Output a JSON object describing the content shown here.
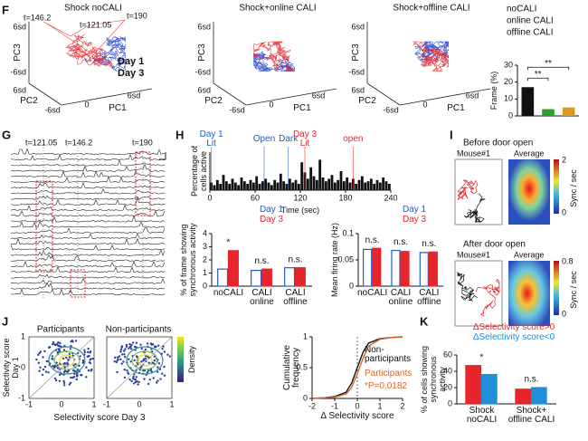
{
  "chart_data": [
    {
      "type": "bar",
      "ylabel": "Frame (%)",
      "categories": [
        "noCALI",
        "online CALI",
        "offline CALI"
      ],
      "values": [
        17,
        4,
        5
      ],
      "colors": [
        "#111111",
        "#2ca02c",
        "#d99a1e"
      ],
      "ylim": [
        0,
        30
      ],
      "yticks": [
        0,
        10,
        20,
        30
      ],
      "annotations": [
        "**",
        "**"
      ]
    },
    {
      "type": "bar",
      "ylabel": "Percentage of cells active",
      "xlabel": "Time (sec)",
      "color": "#111111",
      "x": [
        2,
        6,
        10,
        14,
        18,
        22,
        26,
        30,
        34,
        38,
        42,
        46,
        50,
        54,
        58,
        62,
        66,
        70,
        74,
        78,
        82,
        86,
        90,
        94,
        98,
        102,
        106,
        110,
        114,
        118,
        122,
        126,
        130,
        134,
        138,
        142,
        146,
        150,
        154,
        158,
        162,
        166,
        170,
        174,
        178,
        182,
        186,
        190,
        194,
        198,
        202,
        206,
        210,
        214,
        218,
        222,
        226,
        230,
        234,
        238
      ],
      "values": [
        6,
        4,
        8,
        5,
        12,
        7,
        5,
        9,
        6,
        4,
        10,
        7,
        5,
        8,
        6,
        11,
        5,
        7,
        9,
        6,
        4,
        8,
        6,
        13,
        7,
        5,
        9,
        6,
        8,
        5,
        22,
        14,
        9,
        18,
        11,
        8,
        24,
        10,
        7,
        9,
        12,
        6,
        8,
        15,
        7,
        10,
        6,
        9,
        5,
        8,
        11,
        6,
        7,
        9,
        5,
        8,
        6,
        10,
        7,
        5
      ],
      "xlim": [
        0,
        240
      ],
      "xticks": [
        0,
        60,
        120,
        180,
        240
      ],
      "ylim": [
        0,
        30
      ],
      "events": [
        {
          "label": "Day 1 Lit",
          "x": 2,
          "color": "#1f5fbf"
        },
        {
          "label": "Open",
          "x": 72,
          "color": "#1f5fbf"
        },
        {
          "label": "Dark",
          "x": 104,
          "color": "#1f5fbf"
        },
        {
          "label": "Day 3 Lit",
          "x": 126,
          "color": "#e8252a"
        },
        {
          "label": "open",
          "x": 190,
          "color": "#e8252a"
        }
      ]
    },
    {
      "type": "bar",
      "ylabel": "% of frame showing synchronous activity",
      "categories": [
        "noCALI",
        "CALI online",
        "CALI offline"
      ],
      "series": [
        {
          "name": "Day 1",
          "color": "#1f5fbf",
          "filled": false,
          "values": [
            1.3,
            1.2,
            1.4
          ]
        },
        {
          "name": "Day 3",
          "color": "#e8252a",
          "filled": true,
          "values": [
            2.7,
            1.3,
            1.4
          ]
        }
      ],
      "ylim": [
        0,
        4
      ],
      "yticks": [
        0,
        1,
        2,
        3,
        4
      ],
      "annotations": [
        "*",
        "n.s.",
        "n.s."
      ]
    },
    {
      "type": "bar",
      "ylabel": "Mean firing rate (Hz)",
      "categories": [
        "noCALI",
        "CALI online",
        "CALI offline"
      ],
      "series": [
        {
          "name": "Day 1",
          "color": "#1f5fbf",
          "filled": false,
          "values": [
            0.07,
            0.068,
            0.064
          ]
        },
        {
          "name": "Day 3",
          "color": "#e8252a",
          "filled": true,
          "values": [
            0.072,
            0.066,
            0.065
          ]
        }
      ],
      "ylim": [
        0,
        0.1
      ],
      "yticks": [
        0,
        0.05,
        0.1
      ],
      "annotations": [
        "n.s.",
        "n.s.",
        "n.s."
      ]
    },
    {
      "type": "line",
      "xlabel": "Δ Selectivity score",
      "ylabel": "Cumulative frequency",
      "annotation": "*P=0.0182",
      "x": [
        -2,
        -1.5,
        -1,
        -0.5,
        -0.25,
        0,
        0.25,
        0.5,
        1,
        1.5,
        2
      ],
      "series": [
        {
          "name": "Non-participants",
          "color": "#111111",
          "values": [
            0,
            0.01,
            0.03,
            0.1,
            0.25,
            0.5,
            0.75,
            0.9,
            0.97,
            0.99,
            1
          ]
        },
        {
          "name": "Participants",
          "color": "#d9652a",
          "values": [
            0,
            0.01,
            0.02,
            0.07,
            0.18,
            0.4,
            0.65,
            0.85,
            0.96,
            0.99,
            1
          ]
        }
      ],
      "xlim": [
        -2,
        2
      ],
      "xticks": [
        -2,
        -1,
        0,
        1,
        2
      ],
      "ylim": [
        0,
        1
      ],
      "yticks": [
        0,
        0.5,
        1
      ]
    },
    {
      "type": "bar",
      "ylabel": "% of cells showing synchronous activity",
      "categories": [
        "Shock noCALI",
        "Shock+ offline CALI"
      ],
      "series": [
        {
          "name": "ΔSelectivity score>0",
          "color": "#e8252a",
          "filled": true,
          "values": [
            47,
            18
          ]
        },
        {
          "name": "ΔSelectivity score<0",
          "color": "#1f8fd8",
          "filled": true,
          "values": [
            36,
            20
          ]
        }
      ],
      "ylim": [
        0,
        60
      ],
      "yticks": [
        0,
        20,
        40,
        60
      ],
      "annotations": [
        "*",
        "n.s."
      ]
    }
  ],
  "figure": {
    "panel_letters": [
      "F",
      "G",
      "H",
      "I",
      "J",
      "K"
    ],
    "F": {
      "titles": [
        "Shock noCALI",
        "Shock+online CALI",
        "Shock+offline CALI"
      ],
      "axis_labels": [
        "PC1",
        "PC2",
        "PC3"
      ],
      "axis_ticks": [
        "6sd",
        "0",
        "-6sd"
      ],
      "times": [
        "t=146.2",
        "t=121.05",
        "t=190"
      ],
      "legend": [
        "Day 1",
        "Day 3"
      ]
    },
    "G": {
      "times": [
        "t=121.05",
        "t=146.2",
        "t=190"
      ]
    },
    "I": {
      "before": "Before door open",
      "after": "After door open",
      "mouse": "Mouse#1",
      "average": "Average",
      "unit": "Sync / sec",
      "before_scale": [
        0,
        2
      ],
      "after_scale": [
        0,
        0.8
      ]
    },
    "J": {
      "titles": [
        "Participants",
        "Non-participants"
      ],
      "ylabel": "Selectivity score Day 1",
      "xlabel": "Selectivity score Day 3",
      "ticks": [
        -1,
        0,
        1
      ],
      "colorbar": "Density"
    }
  }
}
